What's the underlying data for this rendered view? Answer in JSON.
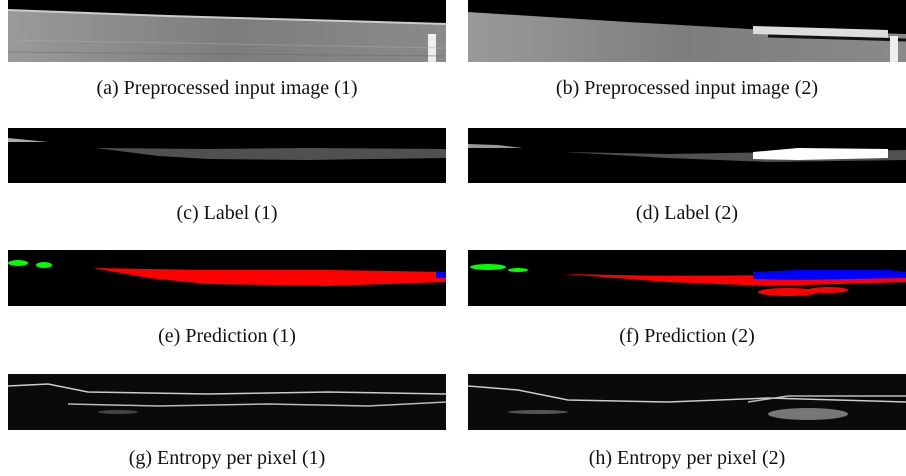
{
  "panels": [
    {
      "caption": "(a) Preprocessed input image (1)"
    },
    {
      "caption": "(b) Preprocessed input image (2)"
    },
    {
      "caption": "(c) Label (1)"
    },
    {
      "caption": "(d) Label (2)"
    },
    {
      "caption": "(e) Prediction (1)"
    },
    {
      "caption": "(f) Prediction (2)"
    },
    {
      "caption": "(g) Entropy per pixel (1)"
    },
    {
      "caption": "(h) Entropy per pixel (2)"
    }
  ]
}
